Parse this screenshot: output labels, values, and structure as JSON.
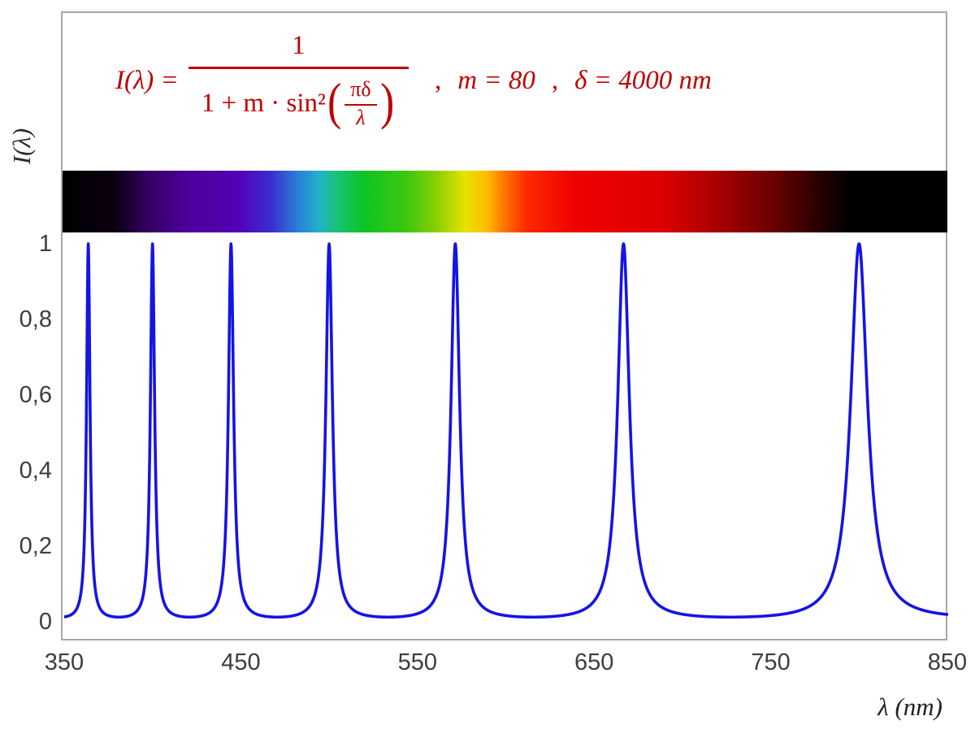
{
  "chart_data": {
    "type": "line",
    "title": "I(λ) = 1 / (1 + m·sin²(πδ/λ)) ,  m = 80 ,  δ = 4000 nm",
    "xlabel": "λ  (nm)",
    "ylabel": "I(λ)",
    "xlim": [
      350,
      850
    ],
    "ylim": [
      0,
      1
    ],
    "grid": false,
    "legend": "none",
    "line_color": "#1414E6",
    "formula_color": "#C00000",
    "tick_color": "#3D3D3D",
    "params": {
      "m": 80,
      "delta_nm": 4000
    },
    "peaks_nm": [
      363.64,
      400,
      444.44,
      500,
      571.43,
      666.67,
      800
    ],
    "curve_expression": "I(λ) = 1 / (1 + m·sin²(π·δ/λ))",
    "x_ticks": [
      {
        "value": 350,
        "label": "350"
      },
      {
        "value": 450,
        "label": "450"
      },
      {
        "value": 550,
        "label": "550"
      },
      {
        "value": 650,
        "label": "650"
      },
      {
        "value": 750,
        "label": "750"
      },
      {
        "value": 850,
        "label": "850"
      }
    ],
    "y_ticks": [
      {
        "value": 0,
        "label": "0"
      },
      {
        "value": 0.2,
        "label": "0,2"
      },
      {
        "value": 0.4,
        "label": "0,4"
      },
      {
        "value": 0.6,
        "label": "0,6"
      },
      {
        "value": 0.8,
        "label": "0,8"
      },
      {
        "value": 1,
        "label": "1"
      }
    ],
    "spectrum": {
      "stops": [
        {
          "wl": 350,
          "color": "#000000"
        },
        {
          "wl": 380,
          "color": "#0b0011"
        },
        {
          "wl": 397,
          "color": "#33005e"
        },
        {
          "wl": 420,
          "color": "#4d0099"
        },
        {
          "wl": 450,
          "color": "#5102b8"
        },
        {
          "wl": 468,
          "color": "#3b2fd0"
        },
        {
          "wl": 483,
          "color": "#2a7fd8"
        },
        {
          "wl": 495,
          "color": "#21b3c8"
        },
        {
          "wl": 505,
          "color": "#19c275"
        },
        {
          "wl": 520,
          "color": "#0cc425"
        },
        {
          "wl": 545,
          "color": "#3fc70e"
        },
        {
          "wl": 562,
          "color": "#8ed000"
        },
        {
          "wl": 578,
          "color": "#e8e300"
        },
        {
          "wl": 590,
          "color": "#ffb900"
        },
        {
          "wl": 600,
          "color": "#ff7300"
        },
        {
          "wl": 612,
          "color": "#fb2a00"
        },
        {
          "wl": 640,
          "color": "#f00000"
        },
        {
          "wl": 690,
          "color": "#dc0000"
        },
        {
          "wl": 720,
          "color": "#a80000"
        },
        {
          "wl": 750,
          "color": "#6e0000"
        },
        {
          "wl": 775,
          "color": "#2f0000"
        },
        {
          "wl": 795,
          "color": "#000000"
        },
        {
          "wl": 850,
          "color": "#000000"
        }
      ]
    }
  },
  "formula": {
    "lhs": "I(λ) =",
    "numerator": "1",
    "den_prefix": "1 + m · sin²",
    "inner_num": "πδ",
    "inner_den": "λ",
    "comma": ",",
    "param_m": "m = 80",
    "param_delta": "δ = 4000 nm"
  }
}
